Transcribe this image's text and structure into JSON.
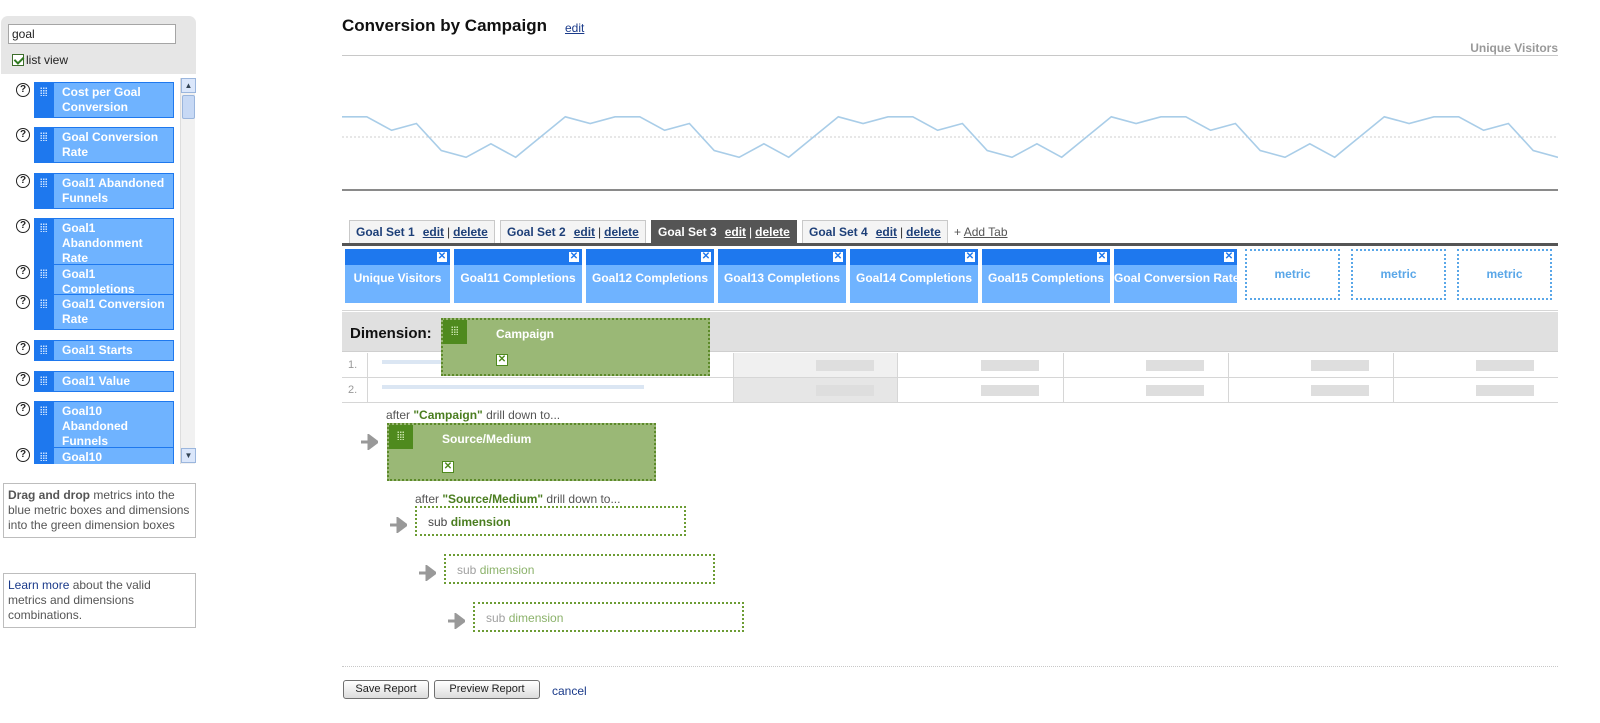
{
  "sidebar": {
    "search_value": "goal",
    "list_view_label": "list view",
    "list_view_checked": true,
    "metrics": [
      {
        "label": "Cost per Goal Conversion"
      },
      {
        "label": "Goal Conversion Rate"
      },
      {
        "label": "Goal1 Abandoned Funnels"
      },
      {
        "label": "Goal1 Abandonment Rate"
      },
      {
        "label": "Goal1 Completions"
      },
      {
        "label": "Goal1 Conversion Rate"
      },
      {
        "label": "Goal1 Starts"
      },
      {
        "label": "Goal1 Value"
      },
      {
        "label": "Goal10 Abandoned Funnels"
      },
      {
        "label": "Goal10"
      }
    ],
    "help1": {
      "bold": "Drag and drop",
      "rest": " metrics into the blue metric boxes and dimensions into the green dimension boxes"
    },
    "help2": {
      "link": "Learn more",
      "rest": " about the valid metrics and dimensions combinations."
    }
  },
  "header": {
    "title": "Conversion by Campaign",
    "edit_label": "edit"
  },
  "chart": {
    "legend": "Unique Visitors"
  },
  "chart_data": {
    "type": "line",
    "series": [
      {
        "name": "Unique Visitors",
        "values": [
          3,
          3,
          1,
          2,
          -2,
          -3,
          -1,
          -3,
          0,
          3,
          2,
          3,
          3,
          1,
          2,
          -2,
          -3,
          -1,
          -3,
          0,
          3,
          2,
          3,
          3,
          1,
          2,
          -2,
          -3,
          -1,
          -3,
          0,
          3,
          2,
          3,
          3,
          1,
          2,
          -2,
          -3,
          -1,
          -3,
          0,
          3,
          2,
          3,
          3,
          1,
          2,
          -2,
          -3
        ]
      }
    ],
    "grid": true,
    "color": "#a9cde8"
  },
  "tabs": {
    "items": [
      {
        "title": "Goal Set 1",
        "edit": "edit",
        "sep": "|",
        "delete": "delete",
        "active": false
      },
      {
        "title": "Goal Set 2",
        "edit": "edit",
        "sep": "|",
        "delete": "delete",
        "active": false
      },
      {
        "title": "Goal Set 3",
        "edit": "edit",
        "sep": "|",
        "delete": "delete",
        "active": true
      },
      {
        "title": "Goal Set 4",
        "edit": "edit",
        "sep": "|",
        "delete": "delete",
        "active": false
      }
    ],
    "add_plus": "+",
    "add_label": "Add Tab"
  },
  "metric_columns": [
    "Unique Visitors",
    "Goal11 Completions",
    "Goal12 Completions",
    "Goal13 Completions",
    "Goal14 Completions",
    "Goal15 Completions",
    "Goal Conversion Rate"
  ],
  "empty_metric_label": "metric",
  "close_glyph": "✕",
  "dimension": {
    "label": "Dimension:",
    "primary": "Campaign",
    "rows": [
      "1.",
      "2."
    ],
    "drill1": {
      "before": "after ",
      "quoted": "\"Campaign\"",
      "after": " drill down to..."
    },
    "secondary": "Source/Medium",
    "drill2": {
      "before": "after ",
      "quoted": "\"Source/Medium\"",
      "after": " drill down to..."
    },
    "sub_a": "sub",
    "sub_b": "dimension"
  },
  "footer": {
    "save": "Save Report",
    "preview": "Preview Report",
    "cancel": "cancel"
  }
}
